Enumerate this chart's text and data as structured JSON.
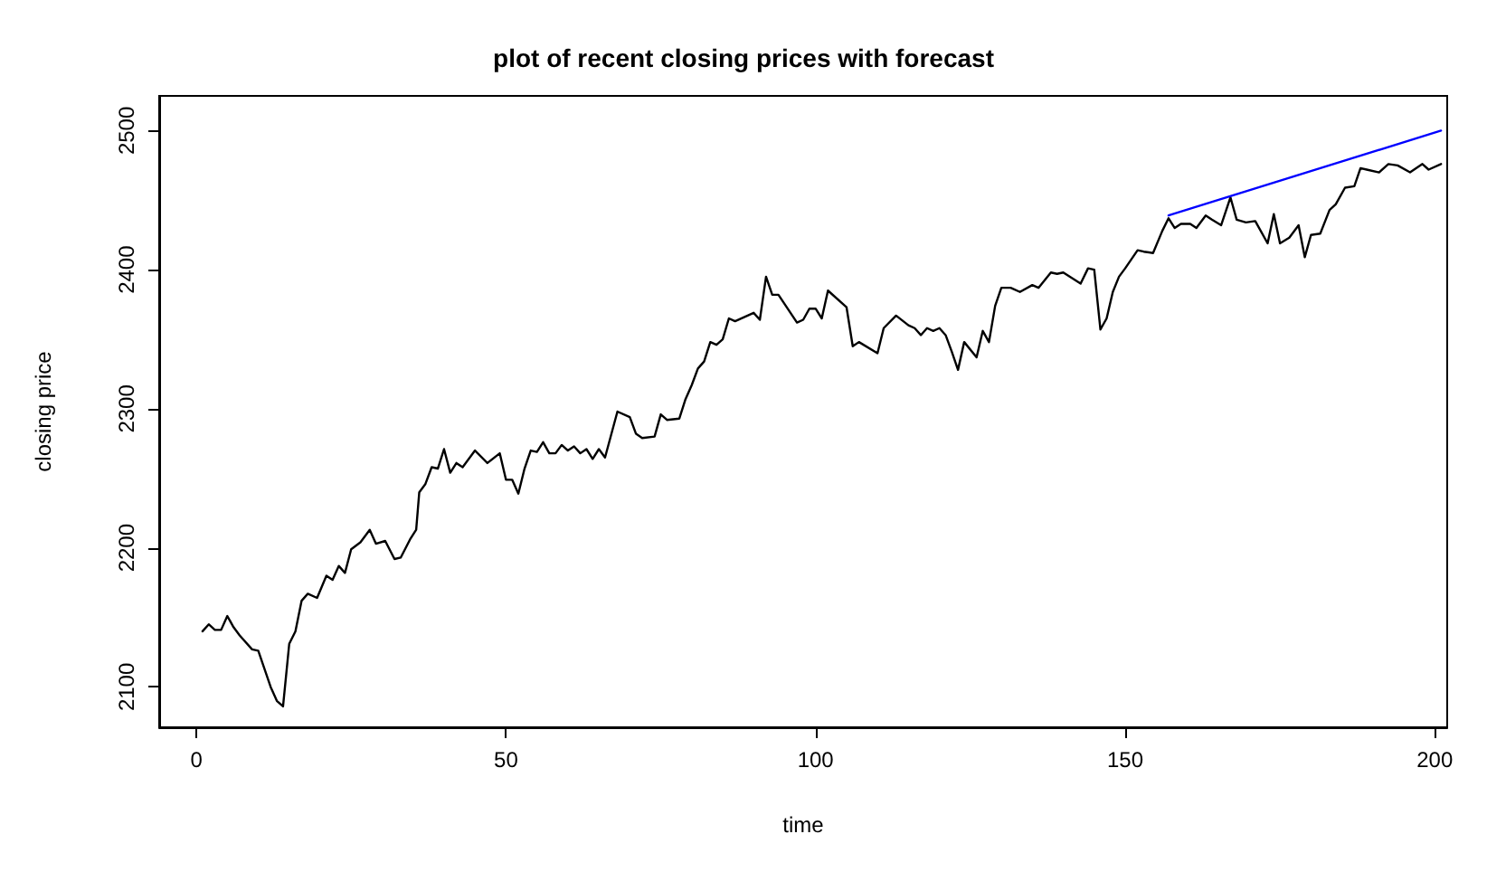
{
  "chart_data": {
    "type": "line",
    "title": "plot of recent closing prices with forecast",
    "xlabel": "time",
    "ylabel": "closing price",
    "xlim": [
      -6,
      202
    ],
    "ylim": [
      2071,
      2525
    ],
    "xticks": [
      0,
      50,
      100,
      150,
      200
    ],
    "yticks": [
      2100,
      2200,
      2300,
      2400,
      2500
    ],
    "grid": false,
    "marker": "none",
    "line_style": "solid",
    "series": [
      {
        "color": "#000000",
        "x": [
          1,
          2,
          3,
          4,
          5,
          6,
          7,
          9,
          10,
          12,
          13,
          14,
          15,
          16,
          17,
          18,
          19.5,
          21,
          22,
          23,
          24,
          25,
          26.5,
          28,
          29,
          30.5,
          32,
          33,
          34.5,
          35.5,
          36,
          37,
          38,
          39,
          40,
          41,
          42,
          43,
          45,
          47,
          49,
          50,
          51,
          52,
          53,
          54,
          55,
          56,
          57,
          58,
          59,
          60,
          61,
          62,
          63,
          64,
          65,
          66,
          68,
          70,
          71,
          72,
          74,
          75,
          76,
          78,
          79,
          80,
          81,
          82,
          83,
          84,
          85,
          86,
          87,
          90,
          91,
          92,
          93,
          94,
          97,
          98,
          99,
          100,
          101,
          102,
          105,
          106,
          107,
          110,
          111,
          113,
          115,
          116,
          117,
          118,
          119,
          120,
          121,
          122,
          123,
          124,
          126,
          127,
          128,
          129,
          130,
          131.5,
          133,
          135,
          136,
          138,
          139,
          140,
          142.8,
          144,
          145,
          146,
          147,
          148,
          149,
          150,
          152,
          153,
          154.5,
          156,
          157,
          158,
          159,
          160.5,
          161.5,
          163,
          164,
          165.5,
          167,
          168,
          169.5,
          171,
          173,
          174,
          175,
          176.5,
          178,
          179,
          180,
          181.5,
          183,
          184,
          185.5,
          187,
          188,
          189,
          191,
          192.5,
          194,
          196,
          198,
          199,
          201
        ],
        "values": [
          2140,
          2145,
          2141,
          2141,
          2151,
          2143,
          2137,
          2127,
          2126,
          2100,
          2090,
          2086,
          2131,
          2140,
          2162,
          2167,
          2164,
          2180,
          2177,
          2187,
          2182,
          2199,
          2204,
          2213,
          2203,
          2205,
          2192,
          2193,
          2206,
          2213,
          2240,
          2246,
          2258,
          2257,
          2271,
          2254,
          2261,
          2258,
          2270,
          2261,
          2268,
          2249,
          2249,
          2239,
          2257,
          2270,
          2269,
          2276,
          2268,
          2268,
          2274,
          2270,
          2273,
          2268,
          2271,
          2264,
          2271,
          2265,
          2298,
          2294,
          2282,
          2279,
          2280,
          2296,
          2292,
          2293,
          2307,
          2317,
          2329,
          2334,
          2348,
          2346,
          2350,
          2365,
          2363,
          2369,
          2364,
          2395,
          2382,
          2382,
          2362,
          2364,
          2372,
          2372,
          2365,
          2385,
          2373,
          2345,
          2348,
          2340,
          2358,
          2367,
          2360,
          2358,
          2353,
          2358,
          2356,
          2358,
          2353,
          2341,
          2328,
          2348,
          2337,
          2356,
          2348,
          2374,
          2387,
          2387,
          2384,
          2389,
          2387,
          2398,
          2397,
          2398,
          2390,
          2401,
          2400,
          2357,
          2365,
          2384,
          2395,
          2401,
          2414,
          2413,
          2412,
          2428,
          2437,
          2430,
          2433,
          2433,
          2430,
          2439,
          2436,
          2432,
          2452,
          2436,
          2434,
          2435,
          2419,
          2440,
          2419,
          2423,
          2432,
          2409,
          2425,
          2426,
          2443,
          2447,
          2459,
          2460,
          2473,
          2472,
          2470,
          2476,
          2475,
          2470,
          2476,
          2472,
          2476
        ]
      },
      {
        "color": "#0000ff",
        "x": [
          157,
          201
        ],
        "values": [
          2439,
          2500
        ]
      }
    ]
  }
}
